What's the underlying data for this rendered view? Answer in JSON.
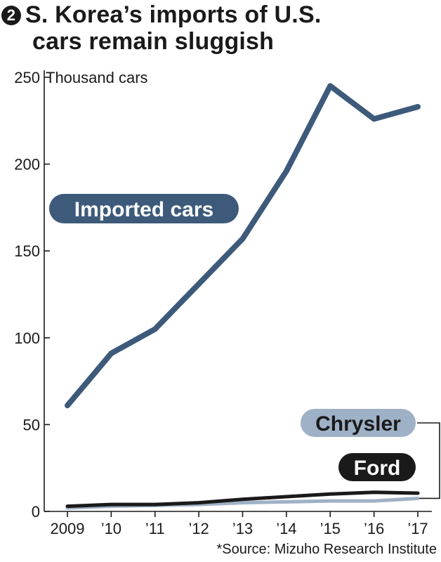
{
  "title": {
    "badge": "2",
    "line1": "S. Korea’s imports of U.S.",
    "line2": "cars remain sluggish"
  },
  "source": "*Source: Mizuho Research Institute",
  "colors": {
    "imported": "#3d5a7a",
    "chrysler": "#9fb1c6",
    "ford": "#1a1a1a",
    "axis": "#1a1a1a"
  },
  "chart_data": {
    "type": "line",
    "ylabel": "Thousand cars",
    "ylim": [
      0,
      250
    ],
    "yticks": [
      0,
      50,
      100,
      150,
      200,
      250
    ],
    "grid": false,
    "categories": [
      "2009",
      "’10",
      "’11",
      "’12",
      "’13",
      "’14",
      "’15",
      "’16",
      "’17"
    ],
    "series": [
      {
        "name": "Imported cars",
        "values": [
          61,
          91,
          105,
          131,
          157,
          196,
          245,
          226,
          233
        ]
      },
      {
        "name": "Chrysler",
        "values": [
          2,
          3,
          3.5,
          4,
          5,
          5.5,
          6,
          6,
          7.5
        ]
      },
      {
        "name": "Ford",
        "values": [
          3,
          4,
          4,
          5,
          7,
          8.5,
          10,
          11,
          10.5
        ]
      }
    ]
  }
}
